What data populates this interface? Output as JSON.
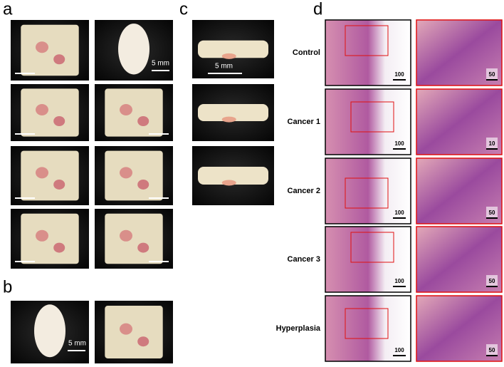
{
  "panels": {
    "a": {
      "label": "a",
      "scale_label": "5 mm"
    },
    "b": {
      "label": "b",
      "scale_label": "5 mm"
    },
    "c": {
      "label": "c",
      "scale_label": "5 mm"
    },
    "d": {
      "label": "d",
      "rows": [
        {
          "label": "Control",
          "left_scale": "100",
          "right_scale": "50"
        },
        {
          "label": "Cancer 1",
          "left_scale": "100",
          "right_scale": "10"
        },
        {
          "label": "Cancer 2",
          "left_scale": "100",
          "right_scale": "50"
        },
        {
          "label": "Cancer 3",
          "left_scale": "100",
          "right_scale": "50"
        },
        {
          "label": "Hyperplasia",
          "left_scale": "100",
          "right_scale": "50"
        }
      ]
    }
  }
}
